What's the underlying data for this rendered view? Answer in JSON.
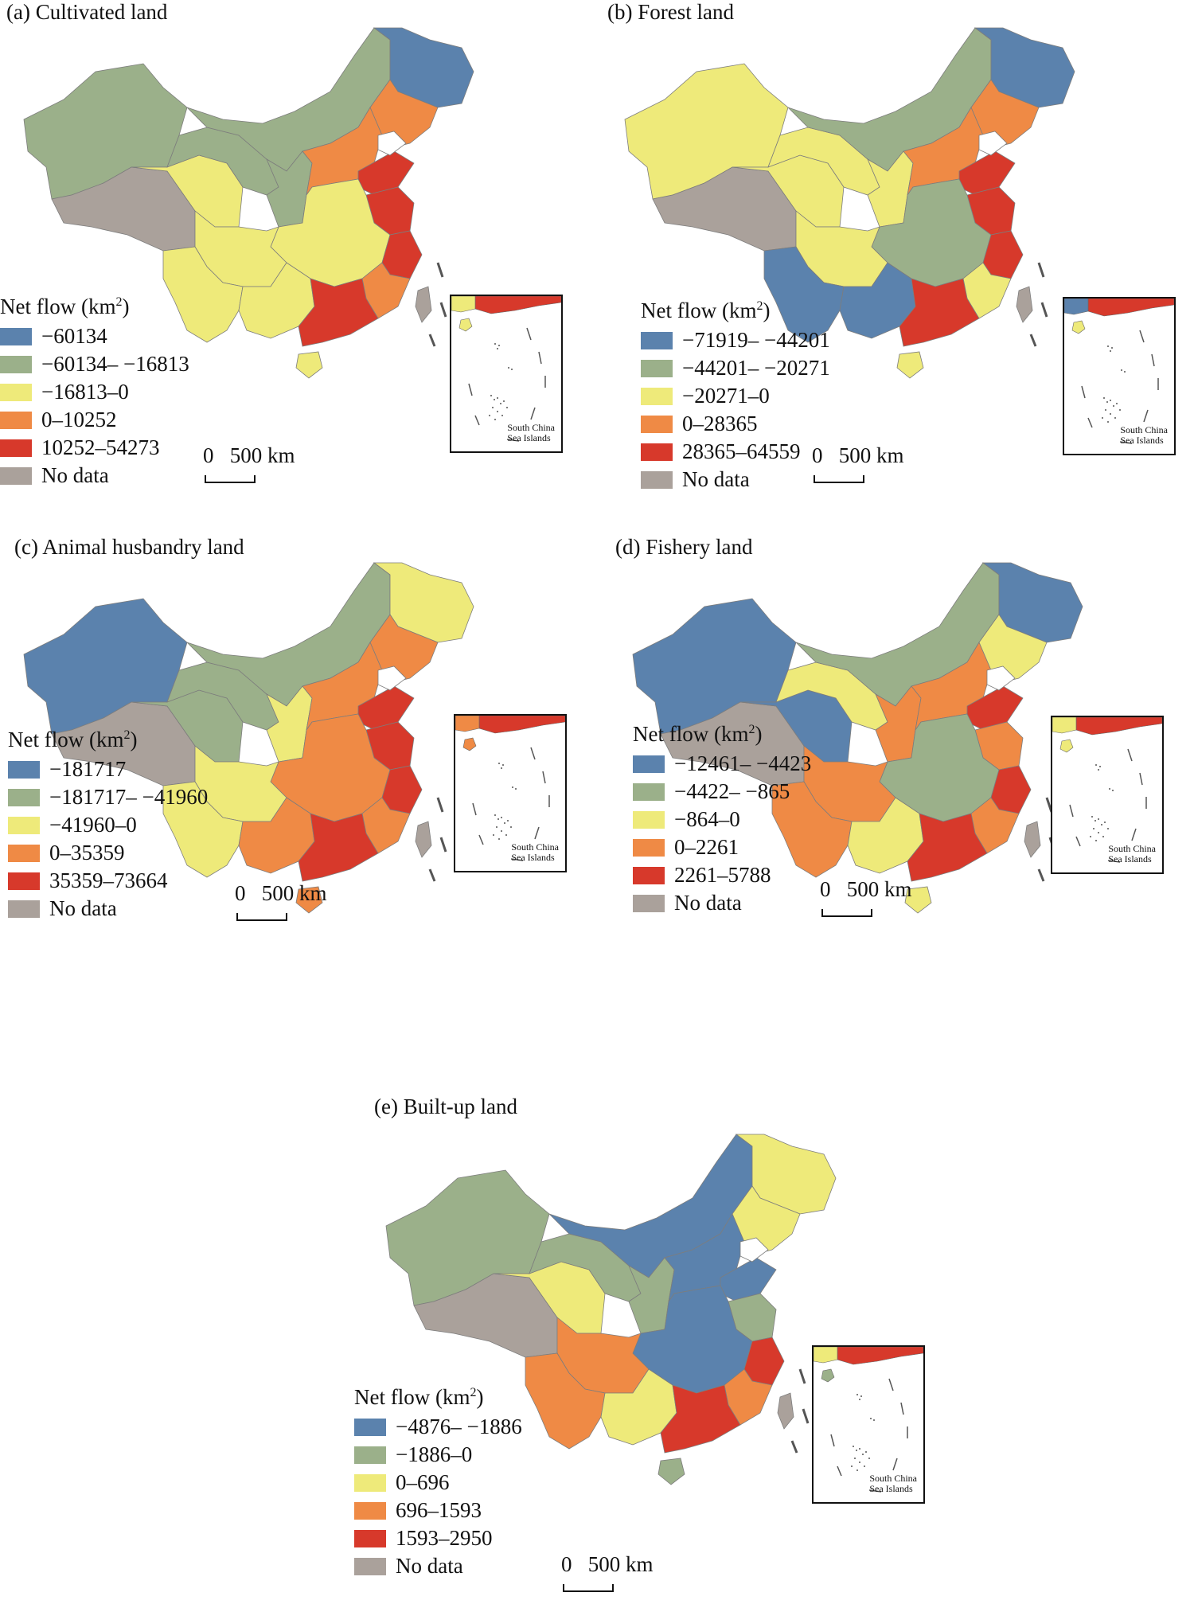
{
  "panels": [
    {
      "title": "(a) Cultivated land",
      "legend_title": "Net flow (km",
      "legend_sup": "2",
      "legend_close": ")",
      "legend": [
        {
          "label": "−60134",
          "color": "#5b82ad"
        },
        {
          "label": "−60134– −16813",
          "color": "#9bb08a"
        },
        {
          "label": "−16813–0",
          "color": "#eeea7a"
        },
        {
          "label": "0–10252",
          "color": "#ef8a45"
        },
        {
          "label": "10252–54273",
          "color": "#d7392b"
        },
        {
          "label": "No data",
          "color": "#aaa19b"
        }
      ],
      "scale_label": "0   500 km",
      "inset_label": [
        "South China",
        "Sea Islands"
      ],
      "inset_top_color": "#d7392b",
      "inset_left_color": "#eeea7a",
      "inset_island_color": "#eeea7a",
      "regions": {
        "northeast": "#5b82ad",
        "inner_mongolia": "#9bb08a",
        "xinjiang": "#9bb08a",
        "tibet": "#aaa19b",
        "qinghai": "#eeea7a",
        "gansu": "#9bb08a",
        "sichuan": "#eeea7a",
        "yunnan": "#eeea7a",
        "central": "#eeea7a",
        "north_china": "#ef8a45",
        "shandong": "#d7392b",
        "jiangsu": "#d7392b",
        "zhejiang": "#d7392b",
        "fujian": "#ef8a45",
        "guangdong": "#d7392b",
        "guangxi": "#eeea7a",
        "hainan": "#eeea7a",
        "taiwan": "#aaa19b",
        "liaoning": "#ef8a45",
        "shaanxi": "#9bb08a"
      }
    },
    {
      "title": "(b) Forest land",
      "legend_title": "Net flow (km",
      "legend_sup": "2",
      "legend_close": ")",
      "legend": [
        {
          "label": "−71919– −44201",
          "color": "#5b82ad"
        },
        {
          "label": "−44201– −20271",
          "color": "#9bb08a"
        },
        {
          "label": "−20271–0",
          "color": "#eeea7a"
        },
        {
          "label": "0–28365",
          "color": "#ef8a45"
        },
        {
          "label": "28365–64559",
          "color": "#d7392b"
        },
        {
          "label": "No data",
          "color": "#aaa19b"
        }
      ],
      "scale_label": "0   500 km",
      "inset_label": [
        "South China",
        "Sea Islands"
      ],
      "inset_top_color": "#d7392b",
      "inset_left_color": "#5b82ad",
      "inset_island_color": "#eeea7a",
      "regions": {
        "northeast": "#5b82ad",
        "inner_mongolia": "#9bb08a",
        "xinjiang": "#eeea7a",
        "tibet": "#aaa19b",
        "qinghai": "#eeea7a",
        "gansu": "#eeea7a",
        "sichuan": "#eeea7a",
        "yunnan": "#5b82ad",
        "central": "#9bb08a",
        "north_china": "#ef8a45",
        "shandong": "#d7392b",
        "jiangsu": "#d7392b",
        "zhejiang": "#d7392b",
        "fujian": "#eeea7a",
        "guangdong": "#d7392b",
        "guangxi": "#5b82ad",
        "hainan": "#eeea7a",
        "taiwan": "#aaa19b",
        "liaoning": "#ef8a45",
        "shaanxi": "#eeea7a"
      }
    },
    {
      "title": "(c) Animal husbandry land",
      "legend_title": "Net flow (km",
      "legend_sup": "2",
      "legend_close": ")",
      "legend": [
        {
          "label": "−181717",
          "color": "#5b82ad"
        },
        {
          "label": "−181717– −41960",
          "color": "#9bb08a"
        },
        {
          "label": "−41960–0",
          "color": "#eeea7a"
        },
        {
          "label": "0–35359",
          "color": "#ef8a45"
        },
        {
          "label": "35359–73664",
          "color": "#d7392b"
        },
        {
          "label": "No data",
          "color": "#aaa19b"
        }
      ],
      "scale_label": "0   500 km",
      "inset_label": [
        "South China",
        "Sea Islands"
      ],
      "inset_top_color": "#d7392b",
      "inset_left_color": "#ef8a45",
      "inset_island_color": "#ef8a45",
      "regions": {
        "northeast": "#eeea7a",
        "inner_mongolia": "#9bb08a",
        "xinjiang": "#5b82ad",
        "tibet": "#aaa19b",
        "qinghai": "#9bb08a",
        "gansu": "#9bb08a",
        "sichuan": "#eeea7a",
        "yunnan": "#eeea7a",
        "central": "#ef8a45",
        "north_china": "#ef8a45",
        "shandong": "#d7392b",
        "jiangsu": "#d7392b",
        "zhejiang": "#d7392b",
        "fujian": "#ef8a45",
        "guangdong": "#d7392b",
        "guangxi": "#ef8a45",
        "hainan": "#ef8a45",
        "taiwan": "#aaa19b",
        "liaoning": "#ef8a45",
        "shaanxi": "#eeea7a"
      }
    },
    {
      "title": "(d) Fishery land",
      "legend_title": "Net flow (km",
      "legend_sup": "2",
      "legend_close": ")",
      "legend": [
        {
          "label": "−12461– −4423",
          "color": "#5b82ad"
        },
        {
          "label": "−4422– −865",
          "color": "#9bb08a"
        },
        {
          "label": "−864–0",
          "color": "#eeea7a"
        },
        {
          "label": "0–2261",
          "color": "#ef8a45"
        },
        {
          "label": "2261–5788",
          "color": "#d7392b"
        },
        {
          "label": "No data",
          "color": "#aaa19b"
        }
      ],
      "scale_label": "0   500 km",
      "inset_label": [
        "South China",
        "Sea Islands"
      ],
      "inset_top_color": "#d7392b",
      "inset_left_color": "#eeea7a",
      "inset_island_color": "#eeea7a",
      "regions": {
        "northeast": "#5b82ad",
        "inner_mongolia": "#9bb08a",
        "xinjiang": "#5b82ad",
        "tibet": "#aaa19b",
        "qinghai": "#5b82ad",
        "gansu": "#eeea7a",
        "sichuan": "#ef8a45",
        "yunnan": "#ef8a45",
        "central": "#9bb08a",
        "north_china": "#ef8a45",
        "shandong": "#d7392b",
        "jiangsu": "#ef8a45",
        "zhejiang": "#d7392b",
        "fujian": "#ef8a45",
        "guangdong": "#d7392b",
        "guangxi": "#eeea7a",
        "hainan": "#eeea7a",
        "taiwan": "#aaa19b",
        "liaoning": "#eeea7a",
        "shaanxi": "#ef8a45"
      }
    },
    {
      "title": "(e) Built-up land",
      "legend_title": "Net flow (km",
      "legend_sup": "2",
      "legend_close": ")",
      "legend": [
        {
          "label": "−4876– −1886",
          "color": "#5b82ad"
        },
        {
          "label": "−1886–0",
          "color": "#9bb08a"
        },
        {
          "label": "0–696",
          "color": "#eeea7a"
        },
        {
          "label": "696–1593",
          "color": "#ef8a45"
        },
        {
          "label": "1593–2950",
          "color": "#d7392b"
        },
        {
          "label": "No data",
          "color": "#aaa19b"
        }
      ],
      "scale_label": "0   500 km",
      "inset_label": [
        "South China",
        "Sea Islands"
      ],
      "inset_top_color": "#d7392b",
      "inset_left_color": "#eeea7a",
      "inset_island_color": "#9bb08a",
      "regions": {
        "northeast": "#eeea7a",
        "inner_mongolia": "#5b82ad",
        "xinjiang": "#9bb08a",
        "tibet": "#aaa19b",
        "qinghai": "#eeea7a",
        "gansu": "#9bb08a",
        "sichuan": "#ef8a45",
        "yunnan": "#ef8a45",
        "central": "#5b82ad",
        "north_china": "#5b82ad",
        "shandong": "#5b82ad",
        "jiangsu": "#9bb08a",
        "zhejiang": "#d7392b",
        "fujian": "#ef8a45",
        "guangdong": "#d7392b",
        "guangxi": "#eeea7a",
        "hainan": "#9bb08a",
        "taiwan": "#aaa19b",
        "liaoning": "#eeea7a",
        "shaanxi": "#9bb08a"
      }
    }
  ]
}
